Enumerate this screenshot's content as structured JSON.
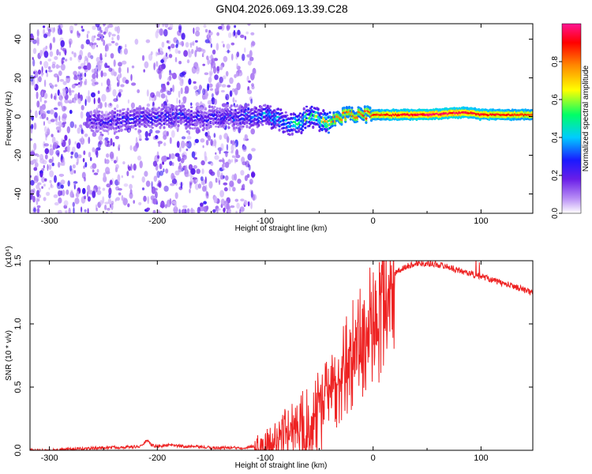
{
  "title": "GN04.2026.069.13.39.C28",
  "chart_data": [
    {
      "type": "heatmap",
      "title": "GN04.2026.069.13.39.C28",
      "xlabel": "Height of straight line (km)",
      "ylabel": "Frequency (Hz)",
      "xlim": [
        -318,
        148
      ],
      "ylim": [
        -50,
        48
      ],
      "xticks": [
        "-300",
        "-200",
        "-100",
        "0",
        "100"
      ],
      "yticks": [
        "-40",
        "-20",
        "0",
        "20",
        "40"
      ],
      "colorbar_label": "Normalized spectral amplitude",
      "colorbar_range": [
        0,
        1
      ],
      "colorbar_ticks": [
        "0.0",
        "0.2",
        "0.4",
        "0.6",
        "0.8"
      ],
      "ridge": {
        "x": [
          -260,
          -240,
          -220,
          -200,
          -180,
          -160,
          -130,
          -100,
          -80,
          -70,
          -60,
          -50,
          -42,
          -30,
          -20,
          -10,
          0,
          20,
          50,
          80,
          90,
          100,
          148
        ],
        "y": [
          -3,
          -2,
          -2,
          0,
          0,
          -1,
          0,
          0,
          -3,
          -5,
          1,
          -2,
          -3,
          0,
          1,
          1,
          1,
          1,
          1,
          2,
          2,
          1,
          1
        ],
        "amplitude": [
          0.25,
          0.25,
          0.3,
          0.3,
          0.3,
          0.25,
          0.3,
          0.4,
          0.45,
          0.55,
          0.55,
          0.6,
          0.75,
          0.8,
          0.8,
          0.8,
          0.85,
          0.9,
          0.95,
          0.95,
          0.9,
          0.9,
          0.85
        ]
      }
    },
    {
      "type": "line",
      "xlabel": "Height of straight line (km)",
      "ylabel": "SNR (10 * v/v)",
      "scale_label": "(x10⁴)",
      "xlim": [
        -318,
        148
      ],
      "ylim": [
        0,
        1.5
      ],
      "xticks": [
        "-300",
        "-200",
        "-100",
        "0",
        "100"
      ],
      "yticks": [
        "0.0",
        "0.5",
        "1.0",
        "1.5"
      ],
      "series": [
        {
          "name": "SNR",
          "color": "#ee2222",
          "x": [
            -318,
            -300,
            -250,
            -215,
            -210,
            -205,
            -200,
            -190,
            -170,
            -150,
            -120,
            -100,
            -90,
            -80,
            -70,
            -60,
            -50,
            -40,
            -30,
            -20,
            -10,
            0,
            10,
            20,
            30,
            40,
            50,
            60,
            70,
            80,
            90,
            95,
            100,
            110,
            120,
            130,
            140,
            148
          ],
          "y": [
            0.0,
            0.0,
            0.02,
            0.03,
            0.08,
            0.04,
            0.03,
            0.04,
            0.03,
            0.02,
            0.02,
            0.05,
            0.1,
            0.2,
            0.25,
            0.3,
            0.4,
            0.55,
            0.75,
            0.9,
            1.0,
            1.15,
            1.3,
            1.4,
            1.45,
            1.48,
            1.48,
            1.47,
            1.45,
            1.42,
            1.4,
            1.38,
            1.38,
            1.35,
            1.32,
            1.3,
            1.27,
            1.24
          ]
        }
      ]
    }
  ]
}
